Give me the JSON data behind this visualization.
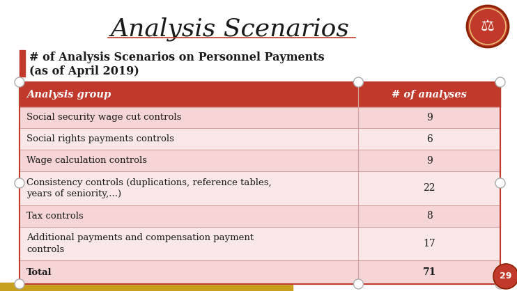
{
  "title": "Analysis Scenarios",
  "subtitle_line1": "# of Analysis Scenarios on Personnel Payments",
  "subtitle_line2": "(as of April 2019)",
  "header_col1": "Analysis group",
  "header_col2": "# of analyses",
  "rows": [
    [
      "Social security wage cut controls",
      "9"
    ],
    [
      "Social rights payments controls",
      "6"
    ],
    [
      "Wage calculation controls",
      "9"
    ],
    [
      "Consistency controls (duplications, reference tables,\nyears of seniority,...)",
      "22"
    ],
    [
      "Tax controls",
      "8"
    ],
    [
      "Additional payments and compensation payment\ncontrols",
      "17"
    ],
    [
      "Total",
      "71"
    ]
  ],
  "row_is_total": [
    false,
    false,
    false,
    false,
    false,
    false,
    true
  ],
  "row_multiline": [
    false,
    false,
    false,
    true,
    false,
    true,
    false
  ],
  "header_bg": "#C0392B",
  "header_text_color": "#FFFFFF",
  "row_bg_light": "#F5D5D5",
  "row_bg_lighter": "#FAE8E8",
  "bg_color": "#FFFFFF",
  "bullet_color": "#C0392B",
  "title_color": "#1a1a1a",
  "border_color": "#C0392B",
  "divider_color": "#D4A0A0",
  "page_number": "29",
  "logo_color": "#C0392B",
  "bottom_bar_color": "#C8A020"
}
